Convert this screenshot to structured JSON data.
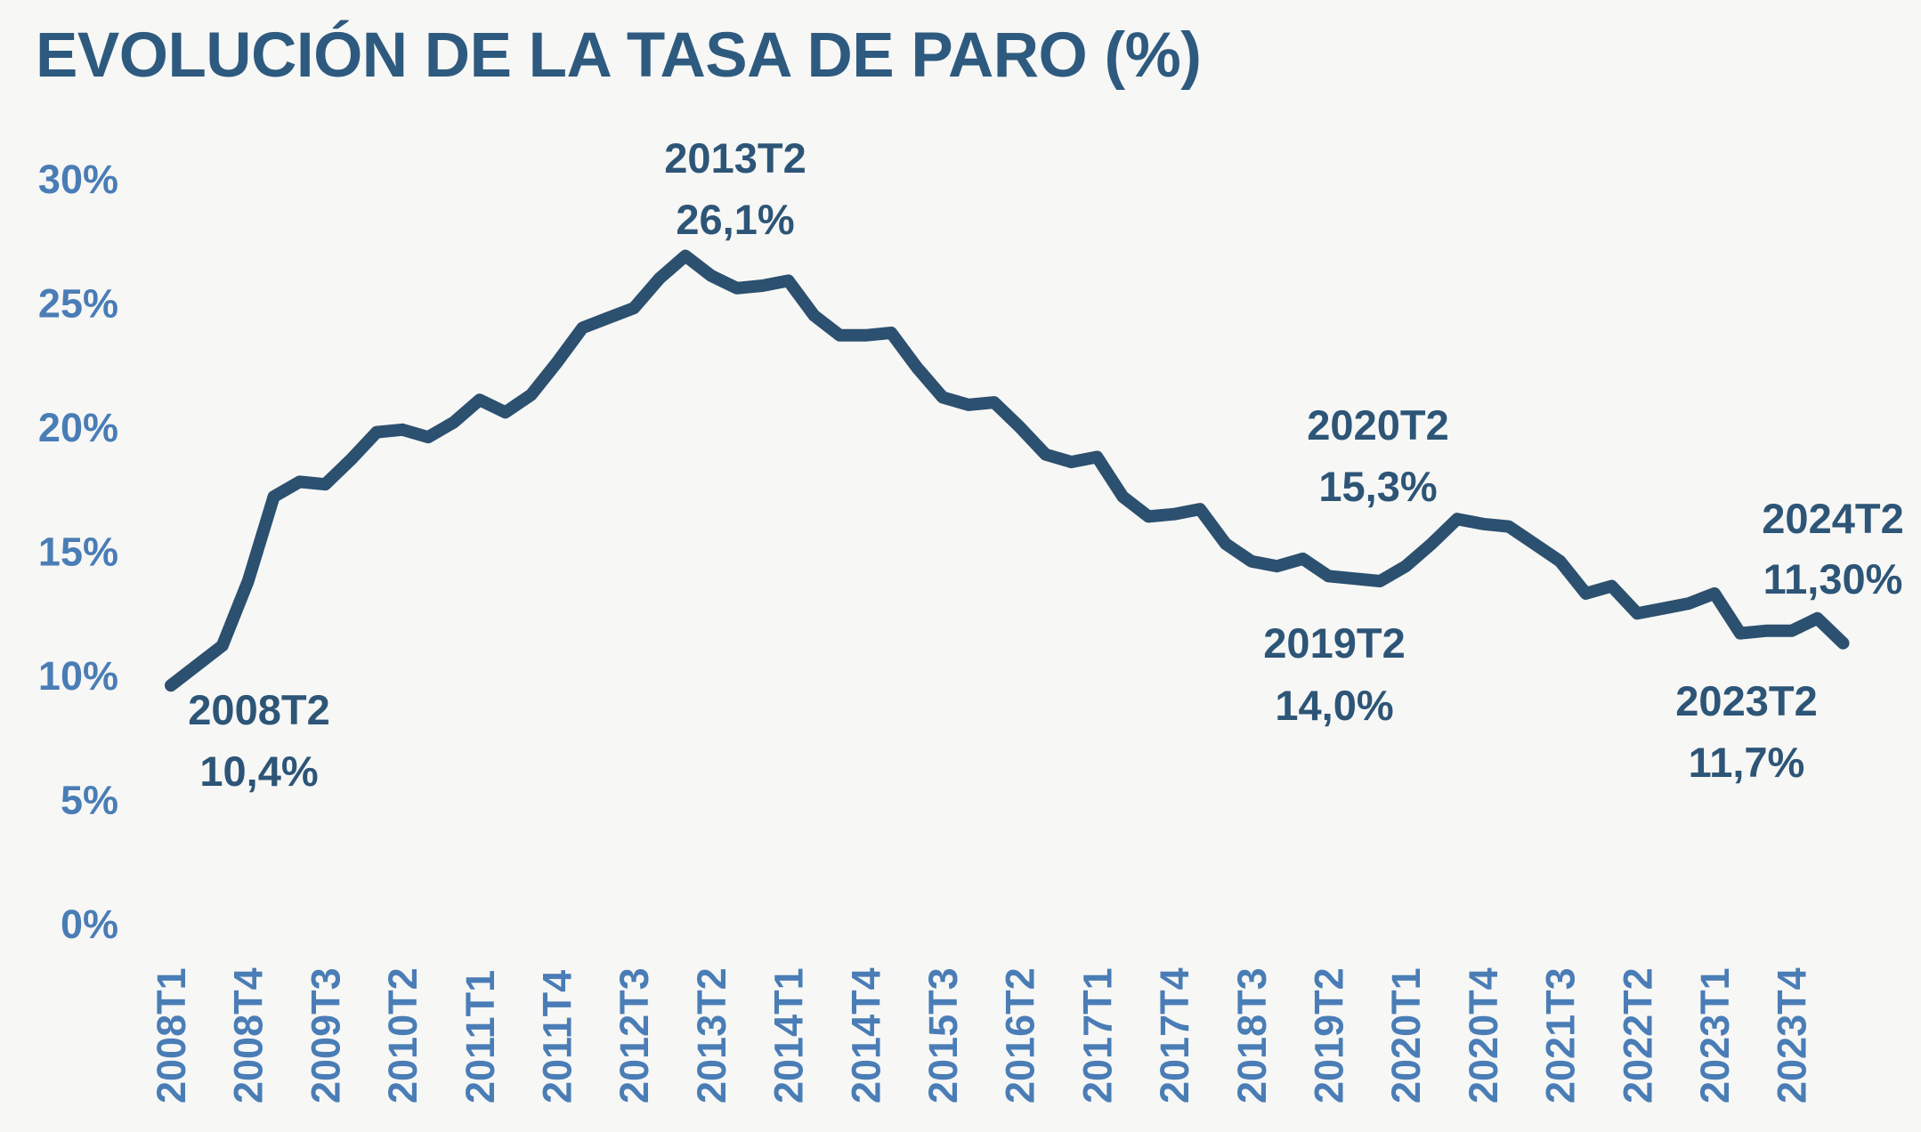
{
  "title": "EVOLUCIÓN DE LA TASA DE PARO (%)",
  "colors": {
    "background": "#f7f7f5",
    "line": "#2c506f",
    "title_text": "#2e5a7f",
    "annotation_text": "#2d5577",
    "axis_label_text": "#4a7db6"
  },
  "chart_data": {
    "type": "line",
    "title": "EVOLUCIÓN DE LA TASA DE PARO (%)",
    "series_name": "Tasa de paro (%)",
    "grid": false,
    "legend": false,
    "ylim": [
      0,
      30
    ],
    "x": [
      "2008T1",
      "2008T2",
      "2008T3",
      "2008T4",
      "2009T1",
      "2009T2",
      "2009T3",
      "2009T4",
      "2010T1",
      "2010T2",
      "2010T3",
      "2010T4",
      "2011T1",
      "2011T2",
      "2011T3",
      "2011T4",
      "2012T1",
      "2012T2",
      "2012T3",
      "2012T4",
      "2013T1",
      "2013T2",
      "2013T3",
      "2013T4",
      "2014T1",
      "2014T2",
      "2014T3",
      "2014T4",
      "2015T1",
      "2015T2",
      "2015T3",
      "2015T4",
      "2016T1",
      "2016T2",
      "2016T3",
      "2016T4",
      "2017T1",
      "2017T2",
      "2017T3",
      "2017T4",
      "2018T1",
      "2018T2",
      "2018T3",
      "2018T4",
      "2019T1",
      "2019T2",
      "2019T3",
      "2019T4",
      "2020T1",
      "2020T2",
      "2020T3",
      "2020T4",
      "2021T1",
      "2021T2",
      "2021T3",
      "2021T4",
      "2022T1",
      "2022T2",
      "2022T3",
      "2022T4",
      "2023T1",
      "2023T2",
      "2023T3",
      "2023T4",
      "2024T1",
      "2024T2"
    ],
    "values": [
      9.6,
      10.4,
      11.2,
      13.8,
      17.2,
      17.8,
      17.7,
      18.7,
      19.8,
      19.9,
      19.6,
      20.2,
      21.1,
      20.6,
      21.3,
      22.6,
      24.0,
      24.4,
      24.8,
      26.0,
      26.9,
      26.1,
      25.6,
      25.7,
      25.9,
      24.5,
      23.7,
      23.7,
      23.8,
      22.4,
      21.2,
      20.9,
      21.0,
      20.0,
      18.9,
      18.6,
      18.8,
      17.2,
      16.4,
      16.5,
      16.7,
      15.3,
      14.6,
      14.4,
      14.7,
      14.0,
      13.9,
      13.8,
      14.4,
      15.3,
      16.3,
      16.1,
      16.0,
      15.3,
      14.6,
      13.3,
      13.6,
      12.5,
      12.7,
      12.9,
      13.3,
      11.7,
      11.8,
      11.8,
      12.3,
      11.3
    ],
    "y_ticks": [
      {
        "value": 30,
        "label": "30%"
      },
      {
        "value": 25,
        "label": "25%"
      },
      {
        "value": 20,
        "label": "20%"
      },
      {
        "value": 15,
        "label": "15%"
      },
      {
        "value": 10,
        "label": "10%"
      },
      {
        "value": 5,
        "label": "5%"
      },
      {
        "value": 0,
        "label": "0%"
      }
    ],
    "x_tick_labels": [
      "2008T1",
      "2008T4",
      "2009T3",
      "2010T2",
      "2011T1",
      "2011T4",
      "2012T3",
      "2013T2",
      "2014T1",
      "2014T4",
      "2015T3",
      "2016T2",
      "2017T1",
      "2017T4",
      "2018T3",
      "2019T2",
      "2020T1",
      "2020T4",
      "2021T3",
      "2022T2",
      "2023T1",
      "2023T4"
    ],
    "x_tick_step": 3,
    "annotations": [
      {
        "quarter": "2013T2",
        "value_label": "26,1%"
      },
      {
        "quarter": "2008T2",
        "value_label": "10,4%"
      },
      {
        "quarter": "2020T2",
        "value_label": "15,3%"
      },
      {
        "quarter": "2019T2",
        "value_label": "14,0%"
      },
      {
        "quarter": "2024T2",
        "value_label": "11,30%"
      },
      {
        "quarter": "2023T2",
        "value_label": "11,7%"
      }
    ]
  }
}
